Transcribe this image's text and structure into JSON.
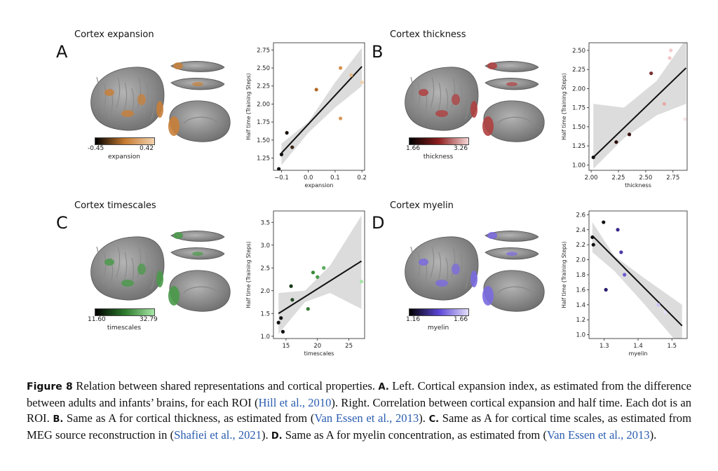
{
  "panels": [
    {
      "letter": "A",
      "title": "Cortex expansion",
      "color": "#c8803a",
      "cbar": {
        "min": "-0.45",
        "max": "0.42",
        "label": "expansion",
        "stops": [
          "#000000",
          "#c67a30",
          "#f2d2ae"
        ]
      },
      "plot": {
        "xlabel": "expansion",
        "ylabel": "Half time (Training Steps)",
        "xlim": [
          -0.13,
          0.21
        ],
        "ylim": [
          1.08,
          2.85
        ],
        "xticks": [
          -0.1,
          0.0,
          0.1,
          0.2
        ],
        "xticklabels": [
          "−0.1",
          "0.0",
          "0.1",
          "0.2"
        ],
        "yticks": [
          1.25,
          1.5,
          1.75,
          2.0,
          2.25,
          2.5,
          2.75
        ],
        "yticklabels": [
          "1.25",
          "1.50",
          "1.75",
          "2.00",
          "2.25",
          "2.50",
          "2.75"
        ],
        "fit": {
          "x0": -0.1,
          "y0": 1.32,
          "x1": 0.2,
          "y1": 2.52
        },
        "band_upper": [
          [
            -0.1,
            1.45
          ],
          [
            0.0,
            1.75
          ],
          [
            0.1,
            2.3
          ],
          [
            0.2,
            2.78
          ]
        ],
        "band_lower": [
          [
            -0.1,
            1.15
          ],
          [
            0.0,
            1.6
          ],
          [
            0.1,
            1.95
          ],
          [
            0.2,
            2.25
          ]
        ],
        "points": [
          {
            "x": -0.11,
            "y": 1.1,
            "c": "#111111"
          },
          {
            "x": -0.1,
            "y": 1.3,
            "c": "#111111"
          },
          {
            "x": -0.08,
            "y": 1.6,
            "c": "#1a1208"
          },
          {
            "x": -0.06,
            "y": 1.4,
            "c": "#3a2614"
          },
          {
            "x": 0.03,
            "y": 2.2,
            "c": "#b06a2a"
          },
          {
            "x": 0.12,
            "y": 2.5,
            "c": "#d4924e"
          },
          {
            "x": 0.12,
            "y": 1.8,
            "c": "#d8975a"
          },
          {
            "x": 0.16,
            "y": 2.4,
            "c": "#e6b884"
          },
          {
            "x": 0.2,
            "y": 2.3,
            "c": "#f0d2ae"
          }
        ]
      }
    },
    {
      "letter": "B",
      "title": "Cortex thickness",
      "color": "#b04040",
      "cbar": {
        "min": "1.66",
        "max": "3.26",
        "label": "thickness",
        "stops": [
          "#000000",
          "#8e1f1f",
          "#f6d6d6"
        ]
      },
      "plot": {
        "xlabel": "thickness",
        "ylabel": "Half time (Training Steps)",
        "xlim": [
          1.98,
          2.88
        ],
        "ylim": [
          0.93,
          2.6
        ],
        "xticks": [
          2.0,
          2.25,
          2.5,
          2.75
        ],
        "xticklabels": [
          "2.00",
          "2.25",
          "2.50",
          "2.75"
        ],
        "yticks": [
          1.0,
          1.25,
          1.5,
          1.75,
          2.0,
          2.25,
          2.5
        ],
        "yticklabels": [
          "1.00",
          "1.25",
          "1.50",
          "1.75",
          "2.00",
          "2.25",
          "2.50"
        ],
        "fit": {
          "x0": 2.02,
          "y0": 1.1,
          "x1": 2.87,
          "y1": 2.27
        },
        "band_upper": [
          [
            2.02,
            1.8
          ],
          [
            2.3,
            1.75
          ],
          [
            2.6,
            2.1
          ],
          [
            2.87,
            2.65
          ]
        ],
        "band_lower": [
          [
            2.02,
            0.95
          ],
          [
            2.3,
            1.35
          ],
          [
            2.6,
            1.65
          ],
          [
            2.87,
            1.8
          ]
        ],
        "points": [
          {
            "x": 2.02,
            "y": 1.1,
            "c": "#111111"
          },
          {
            "x": 2.23,
            "y": 1.3,
            "c": "#2a0a0a"
          },
          {
            "x": 2.35,
            "y": 1.4,
            "c": "#3a1212"
          },
          {
            "x": 2.55,
            "y": 2.2,
            "c": "#7a3030"
          },
          {
            "x": 2.67,
            "y": 1.8,
            "c": "#e8a8a8"
          },
          {
            "x": 2.72,
            "y": 2.4,
            "c": "#f2c4c4"
          },
          {
            "x": 2.73,
            "y": 2.5,
            "c": "#f4cccc"
          },
          {
            "x": 2.86,
            "y": 1.6,
            "c": "#f8e4e4"
          }
        ]
      }
    },
    {
      "letter": "C",
      "title": "Cortex timescales",
      "color": "#4a9a4a",
      "cbar": {
        "min": "11.60",
        "max": "32.79",
        "label": "timescales",
        "stops": [
          "#000000",
          "#2c7a2c",
          "#a6e6a6"
        ]
      },
      "plot": {
        "xlabel": "timescales",
        "ylabel": "Half time (Training Steps)",
        "xlim": [
          13.0,
          27.5
        ],
        "ylim": [
          0.95,
          3.75
        ],
        "xticks": [
          15,
          20,
          25
        ],
        "xticklabels": [
          "15",
          "20",
          "25"
        ],
        "yticks": [
          1.0,
          1.5,
          2.0,
          2.5,
          3.0,
          3.5
        ],
        "yticklabels": [
          "1.0",
          "1.5",
          "2.0",
          "2.5",
          "3.0",
          "3.5"
        ],
        "fit": {
          "x0": 13.8,
          "y0": 1.5,
          "x1": 27.0,
          "y1": 2.65
        },
        "band_upper": [
          [
            13.8,
            1.95
          ],
          [
            18,
            2.0
          ],
          [
            22,
            2.55
          ],
          [
            27,
            3.65
          ]
        ],
        "band_lower": [
          [
            13.8,
            1.05
          ],
          [
            18,
            1.75
          ],
          [
            22,
            1.95
          ],
          [
            27,
            1.6
          ]
        ],
        "points": [
          {
            "x": 13.8,
            "y": 1.3,
            "c": "#111111"
          },
          {
            "x": 14.2,
            "y": 1.4,
            "c": "#111111"
          },
          {
            "x": 14.5,
            "y": 1.1,
            "c": "#111111"
          },
          {
            "x": 15.8,
            "y": 2.1,
            "c": "#1a3a1a"
          },
          {
            "x": 16.0,
            "y": 1.8,
            "c": "#2a4a2a"
          },
          {
            "x": 18.5,
            "y": 1.6,
            "c": "#3a7a3a"
          },
          {
            "x": 19.3,
            "y": 2.4,
            "c": "#3a8a3a"
          },
          {
            "x": 20.0,
            "y": 2.3,
            "c": "#4a9a4a"
          },
          {
            "x": 21.0,
            "y": 2.5,
            "c": "#5aaa5a"
          },
          {
            "x": 27.0,
            "y": 2.2,
            "c": "#a6e6a6"
          }
        ]
      }
    },
    {
      "letter": "D",
      "title": "Cortex myelin",
      "color": "#7a6ae0",
      "cbar": {
        "min": "1.16",
        "max": "1.66",
        "label": "myelin",
        "stops": [
          "#000000",
          "#5a46d6",
          "#e2defa"
        ]
      },
      "plot": {
        "xlabel": "myelin",
        "ylabel": "Half time (Training Steps)",
        "xlim": [
          1.255,
          1.545
        ],
        "ylim": [
          0.95,
          2.65
        ],
        "xticks": [
          1.3,
          1.4,
          1.5
        ],
        "xticklabels": [
          "1.3",
          "1.4",
          "1.5"
        ],
        "yticks": [
          1.0,
          1.2,
          1.4,
          1.6,
          1.8,
          2.0,
          2.2,
          2.4,
          2.6
        ],
        "yticklabels": [
          "1.0",
          "1.2",
          "1.4",
          "1.6",
          "1.8",
          "2.0",
          "2.2",
          "2.4",
          "2.6"
        ],
        "fit": {
          "x0": 1.265,
          "y0": 2.32,
          "x1": 1.53,
          "y1": 1.12
        },
        "band_upper": [
          [
            1.265,
            2.5
          ],
          [
            1.33,
            2.05
          ],
          [
            1.42,
            1.75
          ],
          [
            1.53,
            1.4
          ]
        ],
        "band_lower": [
          [
            1.265,
            2.1
          ],
          [
            1.33,
            1.85
          ],
          [
            1.42,
            1.4
          ],
          [
            1.53,
            0.82
          ]
        ],
        "points": [
          {
            "x": 1.265,
            "y": 2.3,
            "c": "#111111"
          },
          {
            "x": 1.268,
            "y": 2.2,
            "c": "#111111"
          },
          {
            "x": 1.298,
            "y": 2.5,
            "c": "#111111"
          },
          {
            "x": 1.305,
            "y": 1.6,
            "c": "#2a1a6a"
          },
          {
            "x": 1.34,
            "y": 2.4,
            "c": "#3a2a8a"
          },
          {
            "x": 1.35,
            "y": 2.1,
            "c": "#4a3aaa"
          },
          {
            "x": 1.36,
            "y": 1.8,
            "c": "#6a5ad0"
          },
          {
            "x": 1.46,
            "y": 1.4,
            "c": "#cac2f4"
          },
          {
            "x": 1.48,
            "y": 1.3,
            "c": "#e2defa"
          }
        ]
      }
    }
  ],
  "caption": {
    "fig": "Figure 8",
    "t1": " Relation between shared representations and cortical properties. ",
    "a": "A.",
    "t2": " Left. Cortical expansion index, as estimated from the difference between adults and infants’ brains, for each ROI (",
    "cite1": "Hill et al., 2010",
    "t3": "). Right. Correlation between cortical expansion and half time. Each dot is an ROI. ",
    "b": "B.",
    "t4": " Same as A for cortical thickness, as estimated from (",
    "cite2": "Van Essen et al., 2013",
    "t5": "). ",
    "c": "C.",
    "t6": " Same as A for cortical time scales, as estimated from MEG source reconstruction in (",
    "cite3": "Shafiei et al., 2021",
    "t7": "). ",
    "d": "D.",
    "t8": " Same as A for myelin concentration, as estimated from (",
    "cite4": "Van Essen et al., 2013",
    "t9": ")."
  }
}
